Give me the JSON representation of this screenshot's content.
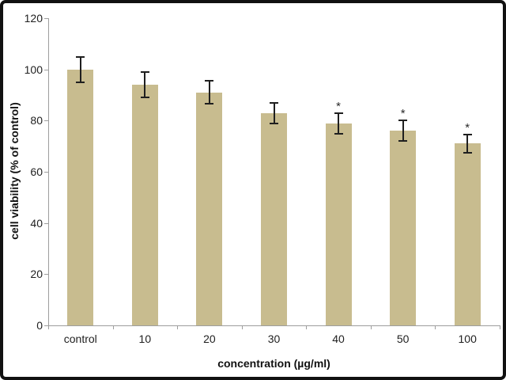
{
  "chart_data": {
    "type": "bar",
    "title": "",
    "xlabel": "concentration (µg/ml)",
    "ylabel": "cell viability (% of control)",
    "categories": [
      "control",
      "10",
      "20",
      "30",
      "40",
      "50",
      "100"
    ],
    "values": [
      100,
      94,
      91,
      83,
      79,
      76,
      71
    ],
    "errors": [
      5,
      5,
      4.5,
      4,
      4,
      4,
      3.5
    ],
    "significance": [
      "",
      "",
      "",
      "",
      "*",
      "*",
      "*"
    ],
    "yticks": [
      0,
      20,
      40,
      60,
      80,
      100,
      120
    ],
    "ylim": [
      0,
      120
    ],
    "grid": false,
    "legend": null,
    "bar_color": "#c8bc8f",
    "error_color": "#1f1f1f",
    "axis_color": "#9e9e9e",
    "label_color": "#1f1f1f"
  }
}
